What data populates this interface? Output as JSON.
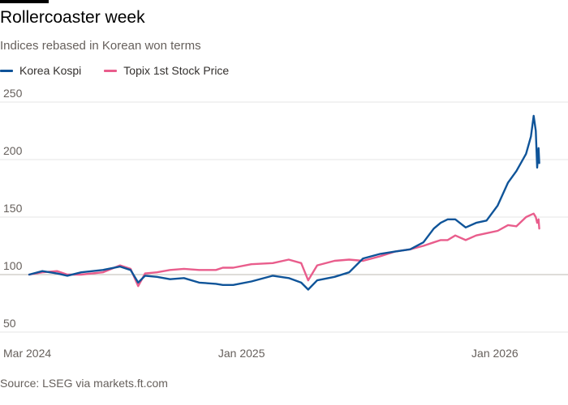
{
  "title": "Rollercoaster week",
  "subtitle": "Indices rebased in Korean won terms",
  "source": "Source: LSEG via markets.ft.com",
  "colors": {
    "Korea Kospi": "#0f5499",
    "Topix 1st Stock Price": "#e95d8c",
    "grid": "#e6e6e6",
    "baseline": "#66605c"
  },
  "chart_data": {
    "type": "line",
    "title": "Rollercoaster week",
    "subtitle": "Indices rebased in Korean won terms",
    "xlabel": "",
    "ylabel": "",
    "ylim": [
      50,
      250
    ],
    "xlim": [
      "2024-03-01",
      "2026-03-10"
    ],
    "grid": true,
    "legend": "top-left",
    "x_ticks": [
      {
        "date": "2024-03-01",
        "label": "Mar 2024"
      },
      {
        "date": "2025-01-01",
        "label": "Jan 2025"
      },
      {
        "date": "2026-01-01",
        "label": "Jan 2026"
      }
    ],
    "y_ticks": [
      50,
      100,
      150,
      200,
      250
    ],
    "series": [
      {
        "name": "Korea Kospi",
        "points": [
          [
            "2024-03-01",
            100
          ],
          [
            "2024-03-20",
            103
          ],
          [
            "2024-04-10",
            101
          ],
          [
            "2024-04-25",
            99
          ],
          [
            "2024-05-15",
            102
          ],
          [
            "2024-06-15",
            104
          ],
          [
            "2024-07-10",
            107
          ],
          [
            "2024-07-25",
            104
          ],
          [
            "2024-08-05",
            93
          ],
          [
            "2024-08-15",
            99
          ],
          [
            "2024-09-01",
            98
          ],
          [
            "2024-09-20",
            96
          ],
          [
            "2024-10-10",
            97
          ],
          [
            "2024-11-01",
            93
          ],
          [
            "2024-11-25",
            92
          ],
          [
            "2024-12-05",
            91
          ],
          [
            "2024-12-20",
            91
          ],
          [
            "2025-01-15",
            94
          ],
          [
            "2025-02-15",
            99
          ],
          [
            "2025-03-10",
            97
          ],
          [
            "2025-03-28",
            93
          ],
          [
            "2025-04-07",
            87
          ],
          [
            "2025-04-20",
            95
          ],
          [
            "2025-05-15",
            98
          ],
          [
            "2025-06-05",
            102
          ],
          [
            "2025-06-25",
            114
          ],
          [
            "2025-07-20",
            118
          ],
          [
            "2025-08-10",
            120
          ],
          [
            "2025-09-01",
            122
          ],
          [
            "2025-09-20",
            128
          ],
          [
            "2025-10-05",
            140
          ],
          [
            "2025-10-15",
            145
          ],
          [
            "2025-10-25",
            148
          ],
          [
            "2025-11-05",
            148
          ],
          [
            "2025-11-20",
            141
          ],
          [
            "2025-12-05",
            145
          ],
          [
            "2025-12-20",
            147
          ],
          [
            "2026-01-05",
            160
          ],
          [
            "2026-01-20",
            180
          ],
          [
            "2026-02-01",
            190
          ],
          [
            "2026-02-15",
            205
          ],
          [
            "2026-02-22",
            220
          ],
          [
            "2026-02-26",
            238
          ],
          [
            "2026-03-01",
            225
          ],
          [
            "2026-03-03",
            193
          ],
          [
            "2026-03-05",
            210
          ],
          [
            "2026-03-06",
            197
          ]
        ]
      },
      {
        "name": "Topix 1st Stock Price",
        "points": [
          [
            "2024-03-01",
            100
          ],
          [
            "2024-03-20",
            102
          ],
          [
            "2024-04-10",
            103
          ],
          [
            "2024-04-25",
            100
          ],
          [
            "2024-05-15",
            100
          ],
          [
            "2024-06-15",
            102
          ],
          [
            "2024-07-10",
            108
          ],
          [
            "2024-07-25",
            105
          ],
          [
            "2024-08-05",
            90
          ],
          [
            "2024-08-15",
            101
          ],
          [
            "2024-09-01",
            102
          ],
          [
            "2024-09-20",
            104
          ],
          [
            "2024-10-10",
            105
          ],
          [
            "2024-11-01",
            104
          ],
          [
            "2024-11-25",
            104
          ],
          [
            "2024-12-05",
            106
          ],
          [
            "2024-12-20",
            106
          ],
          [
            "2025-01-15",
            109
          ],
          [
            "2025-02-15",
            110
          ],
          [
            "2025-03-10",
            113
          ],
          [
            "2025-03-28",
            110
          ],
          [
            "2025-04-07",
            95
          ],
          [
            "2025-04-20",
            108
          ],
          [
            "2025-05-15",
            112
          ],
          [
            "2025-06-05",
            113
          ],
          [
            "2025-06-25",
            112
          ],
          [
            "2025-07-20",
            116
          ],
          [
            "2025-08-10",
            120
          ],
          [
            "2025-09-01",
            122
          ],
          [
            "2025-09-20",
            125
          ],
          [
            "2025-10-05",
            128
          ],
          [
            "2025-10-15",
            130
          ],
          [
            "2025-10-25",
            130
          ],
          [
            "2025-11-05",
            134
          ],
          [
            "2025-11-20",
            130
          ],
          [
            "2025-12-05",
            134
          ],
          [
            "2025-12-20",
            136
          ],
          [
            "2026-01-05",
            138
          ],
          [
            "2026-01-20",
            143
          ],
          [
            "2026-02-01",
            142
          ],
          [
            "2026-02-15",
            150
          ],
          [
            "2026-02-22",
            152
          ],
          [
            "2026-02-26",
            153
          ],
          [
            "2026-03-01",
            150
          ],
          [
            "2026-03-03",
            145
          ],
          [
            "2026-03-05",
            148
          ],
          [
            "2026-03-06",
            140
          ]
        ]
      }
    ]
  }
}
